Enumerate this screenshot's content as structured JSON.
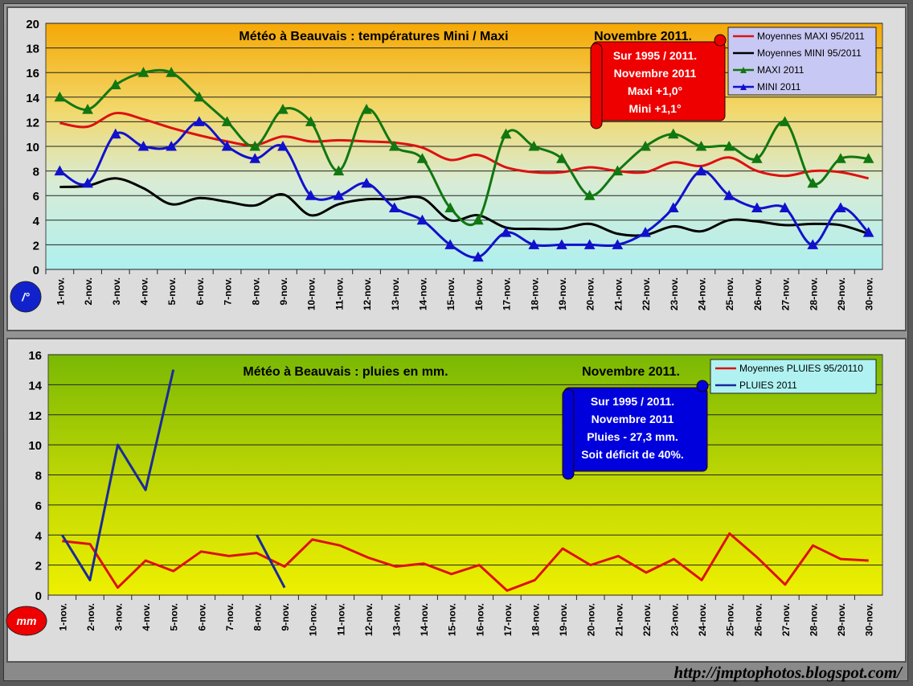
{
  "footer": {
    "url": "http://jmptophotos.blogspot.com/"
  },
  "chart_data": [
    {
      "type": "line",
      "title": "Météo à Beauvais : températures Mini / Maxi",
      "subtitle": "Novembre 2011.",
      "unit_badge": "/°",
      "ylim": [
        0,
        20
      ],
      "yticks": [
        0,
        2,
        4,
        6,
        8,
        10,
        12,
        14,
        16,
        18,
        20
      ],
      "categories": [
        "1-nov.",
        "2-nov.",
        "3-nov.",
        "4-nov.",
        "5-nov.",
        "6-nov.",
        "7-nov.",
        "8-nov.",
        "9-nov.",
        "10-nov.",
        "11-nov.",
        "12-nov.",
        "13-nov.",
        "14-nov.",
        "15-nov.",
        "16-nov.",
        "17-nov.",
        "18-nov.",
        "19-nov.",
        "20-nov.",
        "21-nov.",
        "22-nov.",
        "23-nov.",
        "24-nov.",
        "25-nov.",
        "26-nov.",
        "27-nov.",
        "28-nov.",
        "29-nov.",
        "30-nov."
      ],
      "series": [
        {
          "name": "Moyennes MAXI 95/2011",
          "color": "#dd1111",
          "marker": "none",
          "values": [
            11.9,
            11.6,
            12.7,
            12.2,
            11.5,
            10.9,
            10.4,
            10.1,
            10.8,
            10.4,
            10.5,
            10.4,
            10.3,
            9.9,
            8.9,
            9.3,
            8.3,
            7.9,
            7.9,
            8.3,
            8.0,
            7.9,
            8.7,
            8.4,
            9.1,
            8.0,
            7.6,
            8.0,
            7.9,
            7.4
          ]
        },
        {
          "name": "Moyennes MINI 95/2011",
          "color": "#000000",
          "marker": "none",
          "values": [
            6.7,
            6.8,
            7.4,
            6.6,
            5.3,
            5.8,
            5.5,
            5.2,
            6.1,
            4.4,
            5.3,
            5.7,
            5.7,
            5.8,
            4.0,
            4.4,
            3.4,
            3.3,
            3.3,
            3.7,
            2.9,
            2.8,
            3.5,
            3.1,
            4.0,
            3.9,
            3.6,
            3.7,
            3.6,
            2.9
          ]
        },
        {
          "name": "MAXI 2011",
          "color": "#117711",
          "marker": "triangle",
          "values": [
            14,
            13,
            15,
            16,
            16,
            14,
            12,
            10,
            13,
            12,
            8,
            13,
            10,
            9,
            5,
            4,
            11,
            10,
            9,
            6,
            8,
            10,
            11,
            10,
            10,
            9,
            12,
            7,
            9,
            9
          ]
        },
        {
          "name": "MINI 2011",
          "color": "#1111cc",
          "marker": "triangle",
          "values": [
            8,
            7,
            11,
            10,
            10,
            12,
            10,
            9,
            10,
            6,
            6,
            7,
            5,
            4,
            2,
            1,
            3,
            2,
            2,
            2,
            2,
            3,
            5,
            8,
            6,
            5,
            5,
            2,
            5,
            3
          ]
        }
      ],
      "callout": [
        "Sur 1995 / 2011.",
        "Novembre 2011",
        "Maxi  +1,0°",
        "Mini   +1,1°"
      ]
    },
    {
      "type": "line",
      "title": "Météo à Beauvais : pluies en mm.",
      "subtitle": "Novembre 2011.",
      "unit_badge": "mm",
      "ylim": [
        0,
        16
      ],
      "yticks": [
        0,
        2,
        4,
        6,
        8,
        10,
        12,
        14,
        16
      ],
      "categories": [
        "1-nov.",
        "2-nov.",
        "3-nov.",
        "4-nov.",
        "5-nov.",
        "6-nov.",
        "7-nov.",
        "8-nov.",
        "9-nov.",
        "10-nov.",
        "11-nov.",
        "12-nov.",
        "13-nov.",
        "14-nov.",
        "15-nov.",
        "16-nov.",
        "17-nov.",
        "18-nov.",
        "19-nov.",
        "20-nov.",
        "21-nov.",
        "22-nov.",
        "23-nov.",
        "24-nov.",
        "25-nov.",
        "26-nov.",
        "27-nov.",
        "28-nov.",
        "29-nov.",
        "30-nov."
      ],
      "series": [
        {
          "name": "Moyennes PLUIES 95/20110",
          "color": "#dd1111",
          "marker": "none",
          "values": [
            3.6,
            3.4,
            0.5,
            2.3,
            1.6,
            2.9,
            2.6,
            2.8,
            1.9,
            3.7,
            3.3,
            2.5,
            1.9,
            2.1,
            1.4,
            2.0,
            0.3,
            1.0,
            3.1,
            2.0,
            2.6,
            1.5,
            2.4,
            1.0,
            4.1,
            2.5,
            0.7,
            3.3,
            2.4,
            2.3
          ]
        },
        {
          "name": "PLUIES 2011",
          "color": "#1a2a9a",
          "marker": "none",
          "values": [
            4,
            1,
            10,
            7,
            15,
            null,
            null,
            4,
            0.5,
            null,
            null,
            null,
            null,
            null,
            null,
            null,
            null,
            null,
            null,
            null,
            null,
            null,
            null,
            null,
            null,
            null,
            null,
            null,
            null,
            null
          ]
        }
      ],
      "callout": [
        "Sur 1995 / 2011.",
        "Novembre 2011",
        "Pluies - 27,3 mm.",
        "Soit déficit de 40%."
      ]
    }
  ]
}
